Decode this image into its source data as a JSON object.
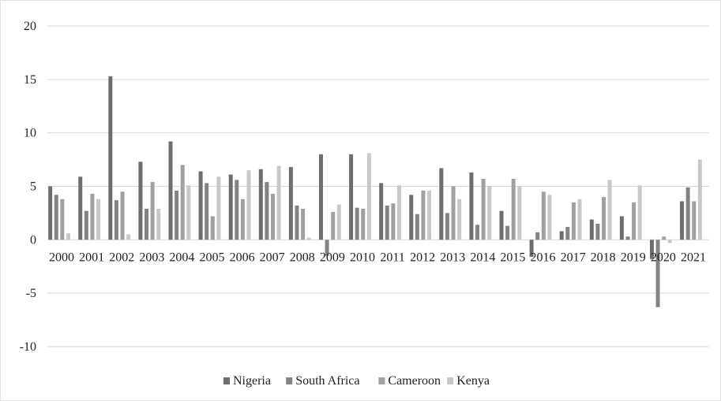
{
  "chart_data": {
    "type": "bar",
    "title": "",
    "xlabel": "",
    "ylabel": "",
    "ylim": [
      -10,
      20
    ],
    "yticks": [
      -10,
      -5,
      0,
      5,
      10,
      15,
      20
    ],
    "grid": true,
    "legend_position": "bottom",
    "categories": [
      "2000",
      "2001",
      "2002",
      "2003",
      "2004",
      "2005",
      "2006",
      "2007",
      "2008",
      "2009",
      "2010",
      "2011",
      "2012",
      "2013",
      "2014",
      "2015",
      "2016",
      "2017",
      "2018",
      "2019",
      "2020",
      "2021"
    ],
    "series": [
      {
        "name": "Nigeria",
        "color": "#6e6e6e",
        "values": [
          5.0,
          5.9,
          15.3,
          7.3,
          9.2,
          6.4,
          6.1,
          6.6,
          6.8,
          8.0,
          8.0,
          5.3,
          4.2,
          6.7,
          6.3,
          2.7,
          -1.6,
          0.8,
          1.9,
          2.2,
          -1.8,
          3.6
        ]
      },
      {
        "name": "South Africa",
        "color": "#838383",
        "values": [
          4.2,
          2.7,
          3.7,
          2.9,
          4.6,
          5.3,
          5.6,
          5.4,
          3.2,
          -1.5,
          3.0,
          3.2,
          2.4,
          2.5,
          1.4,
          1.3,
          0.7,
          1.2,
          1.5,
          0.3,
          -6.3,
          4.9
        ]
      },
      {
        "name": "Cameroon",
        "color": "#a0a0a0",
        "values": [
          3.8,
          4.3,
          4.5,
          5.4,
          7.0,
          2.2,
          3.8,
          4.3,
          2.9,
          2.6,
          2.9,
          3.4,
          4.6,
          5.0,
          5.7,
          5.7,
          4.5,
          3.5,
          4.0,
          3.5,
          0.3,
          3.6
        ]
      },
      {
        "name": "Kenya",
        "color": "#c8c8c8",
        "values": [
          0.6,
          3.8,
          0.5,
          2.9,
          5.1,
          5.9,
          6.5,
          6.9,
          0.2,
          3.3,
          8.1,
          5.1,
          4.6,
          3.8,
          5.0,
          5.0,
          4.2,
          3.8,
          5.6,
          5.1,
          -0.3,
          7.5
        ]
      }
    ]
  }
}
